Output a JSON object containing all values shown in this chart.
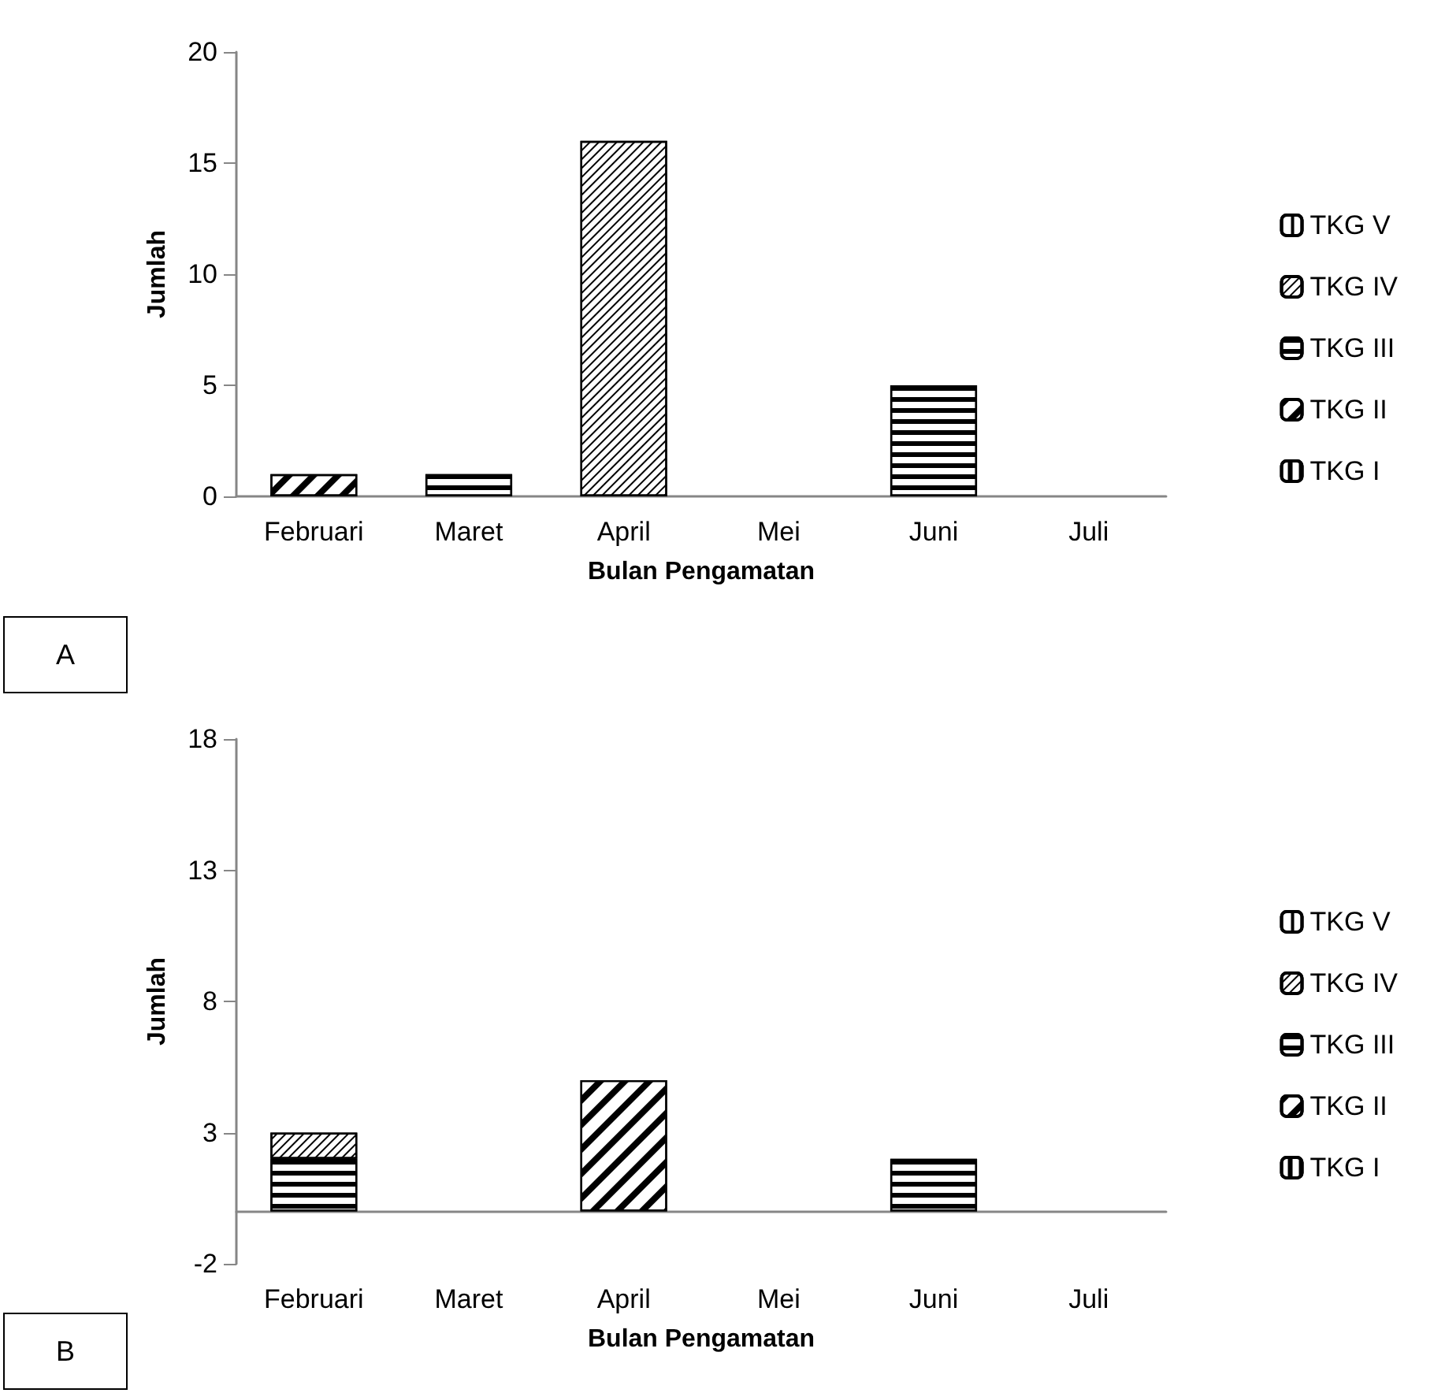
{
  "chart_data": [
    {
      "type": "bar",
      "stacked": true,
      "xlabel": "Bulan Pengamatan",
      "ylabel": "Jumlah",
      "annotations": [
        "A"
      ],
      "categories": [
        "Februari",
        "Maret",
        "April",
        "Mei",
        "Juni",
        "Juli"
      ],
      "ylim": [
        0,
        20
      ],
      "yticks": [
        0,
        5,
        10,
        15,
        20
      ],
      "grid": false,
      "legend": "right",
      "series": [
        {
          "name": "TKG I",
          "color": "#000000",
          "values": [
            null,
            null,
            null,
            null,
            null,
            null
          ]
        },
        {
          "name": "TKG II",
          "color": "#000000",
          "values": [
            1,
            null,
            null,
            null,
            null,
            null
          ]
        },
        {
          "name": "TKG III",
          "color": "#000000",
          "values": [
            null,
            1,
            null,
            null,
            5,
            null
          ]
        },
        {
          "name": "TKG IV",
          "color": "#000000",
          "values": [
            null,
            null,
            16,
            null,
            null,
            null
          ]
        },
        {
          "name": "TKG V",
          "color": "#000000",
          "values": [
            null,
            null,
            null,
            null,
            null,
            null
          ]
        }
      ]
    },
    {
      "type": "bar",
      "stacked": true,
      "xlabel": "Bulan Pengamatan",
      "ylabel": "Jumlah",
      "annotations": [
        "B"
      ],
      "categories": [
        "Februari",
        "Maret",
        "April",
        "Mei",
        "Juni",
        "Juli"
      ],
      "ylim": [
        -2,
        18
      ],
      "yticks": [
        -2,
        3,
        8,
        13,
        18
      ],
      "grid": false,
      "legend": "right",
      "series": [
        {
          "name": "TKG I",
          "color": "#000000",
          "values": [
            null,
            null,
            null,
            null,
            null,
            null
          ]
        },
        {
          "name": "TKG II",
          "color": "#000000",
          "values": [
            null,
            null,
            5,
            null,
            null,
            null
          ]
        },
        {
          "name": "TKG III",
          "color": "#000000",
          "values": [
            2,
            null,
            null,
            null,
            2,
            null
          ]
        },
        {
          "name": "TKG IV",
          "color": "#000000",
          "values": [
            1,
            null,
            null,
            null,
            null,
            null
          ]
        },
        {
          "name": "TKG V",
          "color": "#000000",
          "values": [
            null,
            null,
            null,
            null,
            null,
            null
          ]
        }
      ]
    }
  ]
}
